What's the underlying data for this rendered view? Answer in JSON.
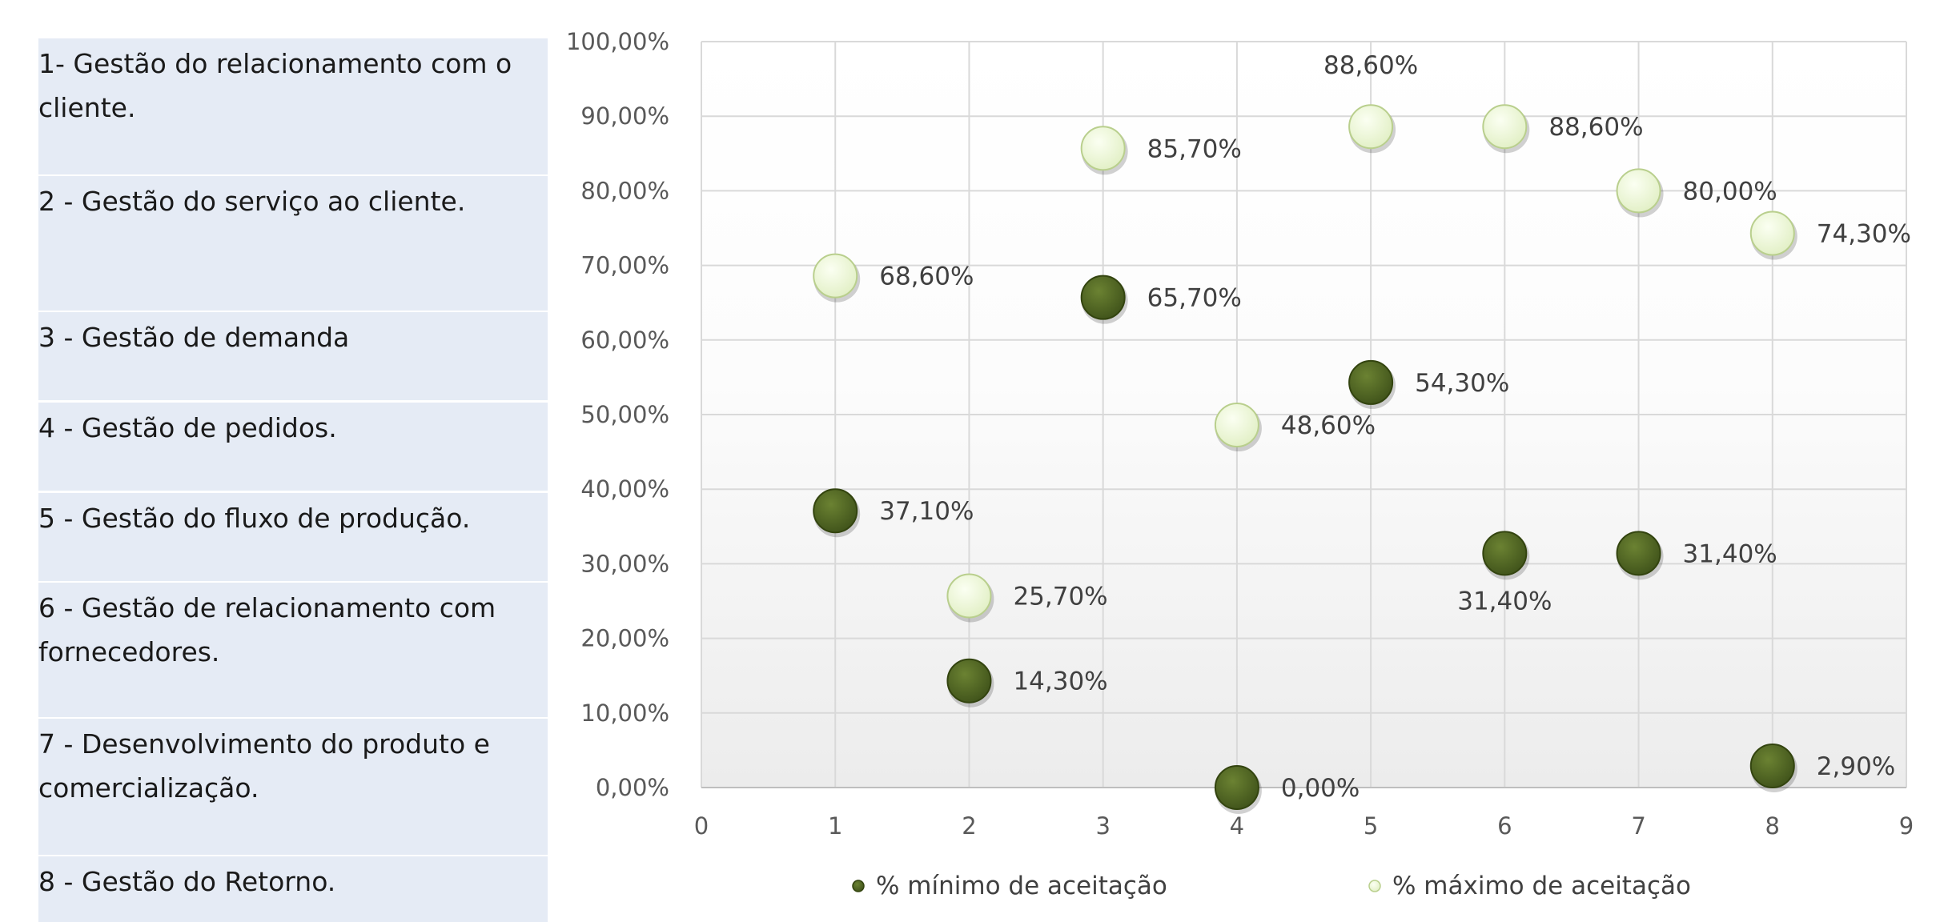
{
  "processes": [
    "1- Gestão do relacionamento com o cliente.",
    "2 - Gestão do serviço ao cliente.",
    "3 - Gestão de demanda",
    "4 - Gestão de pedidos.",
    "5 - Gestão do fluxo de produção.",
    "6 - Gestão de relacionamento com fornecedores.",
    "7 - Desenvolvimento do produto e comercialização.",
    "8 - Gestão do Retorno."
  ],
  "chart_data": {
    "type": "scatter",
    "xlim": [
      0,
      9
    ],
    "ylim": [
      0,
      100
    ],
    "x_ticks": [
      "0",
      "1",
      "2",
      "3",
      "4",
      "5",
      "6",
      "7",
      "8",
      "9"
    ],
    "y_ticks": [
      "0,00%",
      "10,00%",
      "20,00%",
      "30,00%",
      "40,00%",
      "50,00%",
      "60,00%",
      "70,00%",
      "80,00%",
      "90,00%",
      "100,00%"
    ],
    "grid": true,
    "legend_position": "bottom",
    "series": [
      {
        "name": "% mínimo de aceitação",
        "color": "#4e6120",
        "points": [
          {
            "x": 1,
            "y": 37.1,
            "label": "37,10%"
          },
          {
            "x": 2,
            "y": 14.3,
            "label": "14,30%"
          },
          {
            "x": 3,
            "y": 65.7,
            "label": "65,70%"
          },
          {
            "x": 4,
            "y": 0.0,
            "label": "0,00%"
          },
          {
            "x": 5,
            "y": 54.3,
            "label": "54,30%"
          },
          {
            "x": 6,
            "y": 31.4,
            "label": "31,40%"
          },
          {
            "x": 7,
            "y": 31.4,
            "label": "31,40%"
          },
          {
            "x": 8,
            "y": 2.9,
            "label": "2,90%"
          }
        ]
      },
      {
        "name": "% máximo de aceitação",
        "color": "#eef7d9",
        "points": [
          {
            "x": 1,
            "y": 68.6,
            "label": "68,60%"
          },
          {
            "x": 2,
            "y": 25.7,
            "label": "25,70%"
          },
          {
            "x": 3,
            "y": 85.7,
            "label": "85,70%"
          },
          {
            "x": 4,
            "y": 48.6,
            "label": "48,60%"
          },
          {
            "x": 5,
            "y": 88.6,
            "label": "88,60%"
          },
          {
            "x": 6,
            "y": 88.6,
            "label": "88,60%"
          },
          {
            "x": 7,
            "y": 80.0,
            "label": "80,00%"
          },
          {
            "x": 8,
            "y": 74.3,
            "label": "74,30%"
          }
        ]
      }
    ]
  }
}
